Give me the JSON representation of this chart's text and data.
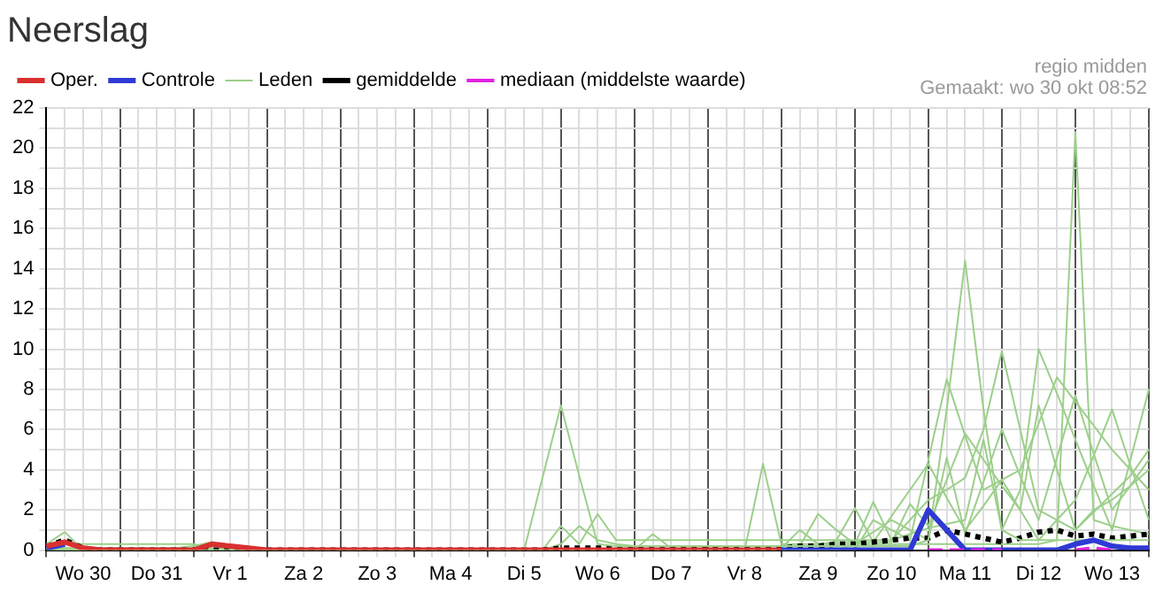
{
  "chart_data": {
    "type": "line",
    "title": "Neerslag",
    "legend": "top left",
    "grid": true,
    "marker": "none",
    "annotations": [
      "regio midden",
      "Gemaakt: wo 30 okt 08:52"
    ],
    "categories": [
      null,
      null,
      "Wo 30",
      null,
      null,
      null,
      "Do 31",
      null,
      null,
      null,
      "Vr 1",
      null,
      null,
      null,
      "Za 2",
      null,
      null,
      null,
      "Zo 3",
      null,
      null,
      null,
      "Ma 4",
      null,
      null,
      null,
      "Di 5",
      null,
      null,
      null,
      "Wo 6",
      null,
      null,
      null,
      "Do 7",
      null,
      null,
      null,
      "Vr 8",
      null,
      null,
      null,
      "Za 9",
      null,
      null,
      null,
      "Zo 10",
      null,
      null,
      null,
      "Ma 11",
      null,
      null,
      null,
      "Di 12",
      null,
      null,
      null,
      "Wo 13",
      null,
      null
    ],
    "ylim": [
      0,
      22
    ],
    "yticks": [
      0,
      {
        "value": 1,
        "label": null
      },
      2,
      {
        "value": 3,
        "label": null
      },
      4,
      {
        "value": 5,
        "label": null
      },
      6,
      {
        "value": 7,
        "label": null
      },
      8,
      {
        "value": 9,
        "label": null
      },
      10,
      {
        "value": 11,
        "label": null
      },
      12,
      {
        "value": 13,
        "label": null
      },
      14,
      {
        "value": 15,
        "label": null
      },
      16,
      {
        "value": 17,
        "label": null
      },
      18,
      {
        "value": 19,
        "label": null
      },
      20,
      {
        "value": 21,
        "label": null
      },
      22
    ],
    "series": [
      {
        "name": "Oper.",
        "color": "#d93030",
        "line_style": "solid",
        "values": [
          0.2,
          0.4,
          0.1,
          0,
          0,
          0,
          0,
          0,
          0,
          0.3,
          0.2,
          0.1,
          0,
          0,
          0,
          0,
          0,
          0,
          0,
          0,
          0,
          0,
          0,
          0,
          0,
          0,
          0,
          0,
          0,
          0,
          0,
          0,
          0,
          0,
          0,
          0,
          0,
          0,
          0,
          0,
          0,
          null,
          null,
          null,
          null,
          null,
          null,
          null,
          null,
          null,
          null,
          null,
          null,
          null,
          null,
          null,
          null,
          null,
          null,
          null,
          null
        ]
      },
      {
        "name": "Controle",
        "color": "#2f3ad4",
        "line_style": "solid",
        "values": [
          0.1,
          0.3,
          null,
          null,
          null,
          null,
          null,
          null,
          null,
          null,
          null,
          null,
          null,
          null,
          null,
          null,
          null,
          null,
          null,
          null,
          null,
          null,
          null,
          null,
          null,
          null,
          null,
          null,
          null,
          null,
          null,
          null,
          null,
          null,
          null,
          null,
          null,
          null,
          null,
          null,
          0,
          0,
          0,
          0,
          0,
          0,
          0,
          0,
          2,
          1,
          0,
          0,
          0,
          0,
          0,
          0,
          0.3,
          0.5,
          0.2,
          0.1,
          0.1
        ]
      },
      {
        "name": "Leden",
        "color": "#9ccf8a",
        "values": [
          0.3,
          0.9,
          0,
          0,
          0,
          0,
          0,
          0,
          0,
          0,
          0,
          0,
          0,
          0,
          0,
          0,
          0,
          0,
          0,
          0,
          0,
          0,
          0,
          0,
          0,
          0,
          0,
          3.6,
          7.2,
          3.7,
          0.3,
          0.2,
          0.2,
          0.2,
          0.2,
          0.2,
          0.2,
          0.2,
          0.2,
          0.2,
          0.2,
          0.2,
          0.2,
          0.2,
          0.2,
          0.2,
          0.2,
          0.2,
          0.5,
          7,
          14.4,
          7,
          1,
          0.5,
          0.5,
          0.5,
          0.5,
          0.5,
          0.5,
          0.5,
          0.5
        ]
      },
      {
        "name": "gemiddelde",
        "color": "#000000",
        "line_style": "dotted",
        "values": [
          0.2,
          0.5,
          0.1,
          0,
          0,
          0,
          0,
          0,
          0,
          0,
          0,
          0,
          0,
          0,
          0,
          0,
          0,
          0,
          0,
          0,
          0,
          0,
          0,
          0,
          0,
          0,
          0,
          0,
          0.1,
          0.1,
          0.1,
          0.1,
          0.1,
          0.1,
          0.1,
          0.1,
          0.1,
          0.1,
          0.1,
          0.1,
          0.1,
          0.2,
          0.2,
          0.3,
          0.3,
          0.4,
          0.5,
          0.6,
          0.6,
          1,
          0.8,
          0.6,
          0.4,
          0.6,
          0.9,
          1,
          0.7,
          0.8,
          0.6,
          0.7,
          0.8
        ]
      },
      {
        "name": "mediaan (middelste waarde)",
        "color": "#e020e0",
        "line_style": "dashed",
        "values": [
          null,
          null,
          null,
          null,
          null,
          null,
          null,
          null,
          null,
          null,
          null,
          null,
          null,
          null,
          null,
          null,
          null,
          null,
          null,
          null,
          null,
          null,
          null,
          null,
          null,
          null,
          null,
          null,
          null,
          null,
          null,
          null,
          null,
          null,
          null,
          null,
          null,
          null,
          null,
          null,
          null,
          null,
          null,
          null,
          null,
          null,
          null,
          null,
          0,
          0,
          0,
          0,
          0,
          null,
          null,
          null,
          0,
          0.1,
          0,
          null,
          null
        ]
      },
      {
        "color": "#9ccf8a",
        "values": [
          0.2,
          0.5,
          0,
          0,
          0,
          0,
          0,
          0,
          0,
          0,
          0,
          0,
          0,
          0,
          0,
          0,
          0,
          0,
          0,
          0,
          0,
          0,
          0,
          0,
          0,
          0,
          0,
          0,
          0,
          0,
          0,
          0,
          0,
          0,
          0,
          0,
          0,
          0,
          0,
          4.3,
          0.3,
          0.3,
          0.3,
          0.3,
          0.3,
          0.3,
          0.3,
          0.3,
          0.3,
          0.3,
          0.3,
          0.3,
          0.3,
          0.3,
          0.3,
          0.5,
          20.8,
          1.5,
          1.2,
          1,
          0.8
        ]
      },
      {
        "color": "#9ccf8a",
        "values": [
          0.1,
          0,
          0,
          0,
          0,
          0,
          0,
          0,
          0,
          0,
          0,
          0,
          0,
          0,
          0,
          0,
          0,
          0,
          0,
          0,
          0,
          0,
          0,
          0,
          0,
          0,
          0,
          0,
          1.2,
          0.3,
          1.8,
          0.5,
          0.5,
          0.5,
          0.5,
          0.5,
          0.5,
          0.5,
          0.5,
          0.5,
          0.5,
          0.5,
          0.5,
          0.5,
          0.5,
          0.5,
          0.5,
          1.5,
          2.5,
          3,
          3.6,
          6,
          9.9,
          6,
          2,
          1.5,
          1,
          2,
          2.5,
          3.2,
          4
        ]
      },
      {
        "color": "#9ccf8a",
        "values": [
          0.1,
          0.1,
          0.1,
          0.1,
          0.1,
          0.1,
          0.1,
          0.1,
          0.2,
          0.4,
          0.1,
          0,
          0,
          0,
          0,
          0,
          0,
          0,
          0,
          0,
          0,
          0,
          0,
          0,
          0,
          0,
          0,
          0,
          0,
          0,
          0,
          0,
          0,
          0,
          0,
          0,
          0,
          0,
          0,
          0,
          0,
          0,
          0,
          0,
          0.3,
          2.4,
          0.5,
          0.8,
          1.1,
          1.3,
          1.5,
          5.5,
          1,
          3,
          10,
          7.8,
          5.5,
          3.2,
          1,
          4.5,
          8
        ]
      },
      {
        "color": "#9ccf8a",
        "values": [
          0,
          0,
          0,
          0,
          0,
          0,
          0,
          0,
          0,
          0,
          0,
          0,
          0,
          0,
          0,
          0,
          0,
          0,
          0,
          0,
          0,
          0,
          0,
          0,
          0,
          0,
          0,
          0,
          0.3,
          1.2,
          0.5,
          0.3,
          0.2,
          0.2,
          0.2,
          0.2,
          0.2,
          0.2,
          0.2,
          0.2,
          0.2,
          0.2,
          1.8,
          1,
          0.3,
          0.9,
          1.5,
          1,
          0.5,
          4.6,
          0.8,
          3.4,
          6,
          3.7,
          1.5,
          4.6,
          7.7,
          4.8,
          2,
          3.2,
          4.5
        ]
      },
      {
        "color": "#9ccf8a",
        "values": [
          0.1,
          0,
          0,
          0,
          0,
          0,
          0,
          0,
          0,
          0,
          0,
          0,
          0,
          0,
          0,
          0,
          0,
          0,
          0,
          0,
          0,
          0,
          0,
          0,
          0,
          0,
          0,
          0,
          0,
          0,
          0,
          0,
          0,
          0.8,
          0.1,
          0,
          0,
          0,
          0,
          0,
          0,
          0,
          0,
          0,
          0,
          1.5,
          1,
          0.5,
          4.5,
          8.5,
          5.7,
          3,
          3.5,
          4,
          6.3,
          8.6,
          7.4,
          6.2,
          5,
          4,
          3
        ]
      },
      {
        "color": "#9ccf8a",
        "values": [
          0.2,
          0.3,
          0.3,
          0.3,
          0.3,
          0.3,
          0.3,
          0.3,
          0.3,
          0.1,
          0.1,
          0.1,
          0,
          0,
          0,
          0,
          0,
          0,
          0,
          0,
          0,
          0,
          0,
          0,
          0,
          0,
          0,
          0,
          0,
          0,
          0,
          0,
          0,
          0,
          0,
          0,
          0,
          0,
          0,
          0,
          0.1,
          1,
          0.3,
          0.4,
          0.4,
          0.4,
          0.4,
          2.3,
          1.2,
          3.5,
          5.8,
          4.5,
          3.2,
          2,
          7.2,
          4,
          1,
          1.9,
          2.8,
          3.7,
          5
        ]
      },
      {
        "color": "#9ccf8a",
        "values": [
          0,
          0,
          0,
          0,
          0,
          0,
          0,
          0,
          0,
          0,
          0,
          0,
          0,
          0,
          0,
          0,
          0,
          0,
          0,
          0,
          0,
          0,
          0,
          0,
          0,
          0,
          0,
          0,
          0,
          0,
          0,
          0,
          0,
          0,
          0,
          0,
          0,
          0,
          0,
          0,
          0,
          0,
          0,
          0.5,
          2.1,
          0.4,
          1.7,
          3,
          4.3,
          2.6,
          1,
          2.2,
          3.5,
          2,
          0.5,
          1.5,
          2.5,
          4.7,
          7,
          4.2,
          1.5
        ]
      }
    ]
  }
}
